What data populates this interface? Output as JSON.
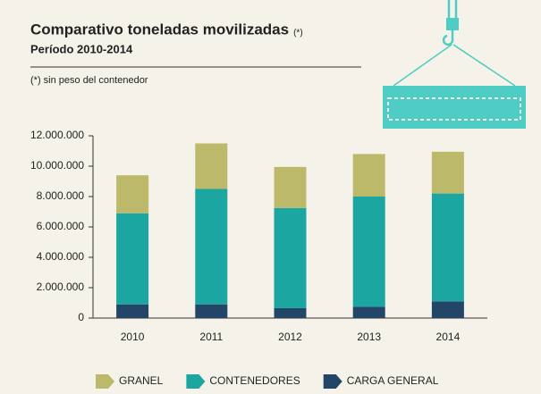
{
  "chart_data": {
    "type": "bar",
    "title": "Comparativo toneladas movilizadas",
    "title_mark": "(*)",
    "subtitle": "Período 2010-2014",
    "note": "(*) sin peso del contenedor",
    "categories": [
      "2010",
      "2011",
      "2012",
      "2013",
      "2014"
    ],
    "series": [
      {
        "name": "GRANEL",
        "color": "#bdb96a",
        "values": [
          2500000,
          3000000,
          2700000,
          2800000,
          2750000
        ]
      },
      {
        "name": "CONTENEDORES",
        "color": "#1ba6a1",
        "values": [
          6000000,
          7600000,
          6600000,
          7250000,
          7100000
        ]
      },
      {
        "name": "CARGA GENERAL",
        "color": "#234568",
        "values": [
          900000,
          900000,
          650000,
          750000,
          1100000
        ]
      }
    ],
    "stacked": true,
    "ylim": [
      0,
      12000000
    ],
    "yticks": [
      0,
      {
        "value": 2000000,
        "label": "2.000.000"
      },
      {
        "value": 4000000,
        "label": "4.000.000"
      },
      {
        "value": 6000000,
        "label": "6.000.000"
      },
      {
        "value": 8000000,
        "label": "8.000.000"
      },
      {
        "value": 10000000,
        "label": "10.000.000"
      },
      {
        "value": 12000000,
        "label": "12.000.000"
      }
    ],
    "legend": "bottom"
  }
}
